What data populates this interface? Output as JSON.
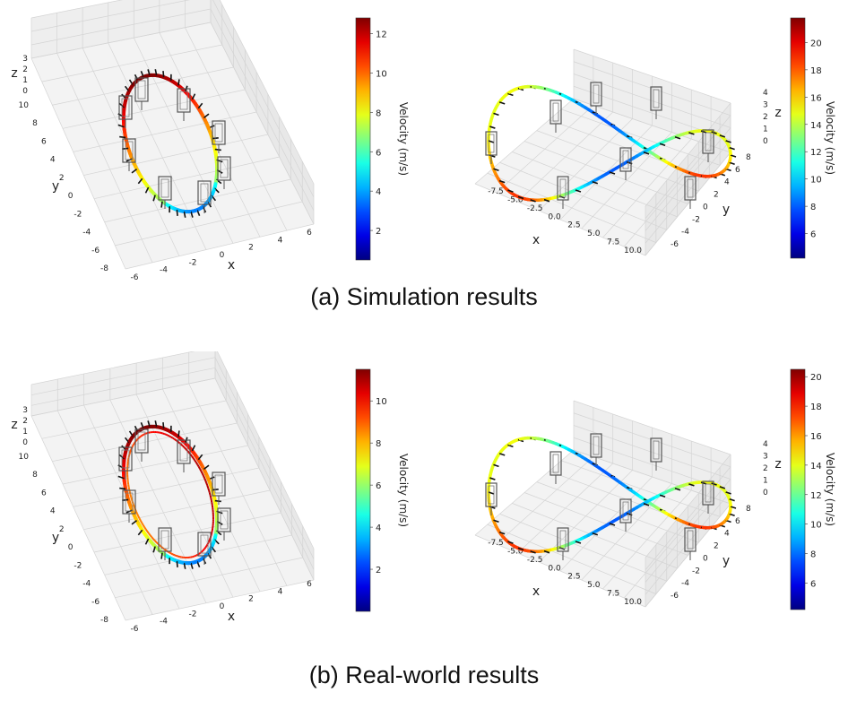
{
  "chart_data": [
    {
      "type": "line",
      "panel": "simulation-figure8-like-circle",
      "subtype": "3d-trajectory",
      "xlabel": "x",
      "ylabel": "y",
      "zlabel": "z",
      "x_ticks": [
        "-6",
        "-4",
        "-2",
        "0",
        "2",
        "4",
        "6"
      ],
      "y_ticks": [
        "-8",
        "-6",
        "-4",
        "-2",
        "0",
        "2",
        "4",
        "6",
        "8",
        "10"
      ],
      "z_ticks": [
        "0",
        "1",
        "2",
        "3"
      ],
      "colorbar": {
        "label": "Velocity (m/s)",
        "ticks": [
          "2",
          "4",
          "6",
          "8",
          "10",
          "12"
        ],
        "min": 0.5,
        "max": 12.8
      },
      "trajectory": {
        "shape": "ellipse",
        "center": [
          0,
          2,
          1.5
        ],
        "rx": 3.2,
        "ry": 5.5
      },
      "gates": [
        [
          -3.5,
          5.5
        ],
        [
          1.5,
          7.5
        ],
        [
          3.8,
          3
        ],
        [
          3.2,
          -1
        ],
        [
          0.5,
          -3.5
        ],
        [
          -3,
          -2
        ],
        [
          -4,
          2
        ],
        [
          -1.8,
          7.5
        ]
      ],
      "grid": true
    },
    {
      "type": "line",
      "panel": "simulation-figure8",
      "subtype": "3d-trajectory",
      "xlabel": "x",
      "ylabel": "y",
      "zlabel": "z",
      "x_ticks": [
        "-7.5",
        "-5.0",
        "-2.5",
        "0.0",
        "2.5",
        "5.0",
        "7.5",
        "10.0"
      ],
      "y_ticks": [
        "-6",
        "-4",
        "-2",
        "0",
        "2",
        "4",
        "6",
        "8"
      ],
      "z_ticks": [
        "0",
        "1",
        "2",
        "3",
        "4"
      ],
      "colorbar": {
        "label": "Velocity (m/s)",
        "ticks": [
          "6",
          "8",
          "10",
          "12",
          "14",
          "16",
          "18",
          "20"
        ],
        "min": 4.2,
        "max": 21.8
      },
      "gates": [
        [
          -8,
          2
        ],
        [
          -3,
          6
        ],
        [
          1,
          5
        ],
        [
          4,
          7
        ],
        [
          7,
          3
        ],
        [
          10,
          1
        ],
        [
          6,
          -3
        ],
        [
          2,
          -6
        ]
      ],
      "grid": true
    },
    {
      "type": "line",
      "panel": "real-world-circle",
      "subtype": "3d-trajectory",
      "xlabel": "x",
      "ylabel": "y",
      "zlabel": "z",
      "x_ticks": [
        "-6",
        "-4",
        "-2",
        "0",
        "2",
        "4",
        "6"
      ],
      "y_ticks": [
        "-8",
        "-6",
        "-4",
        "-2",
        "0",
        "2",
        "4",
        "6",
        "8",
        "10"
      ],
      "z_ticks": [
        "0",
        "1",
        "2",
        "3"
      ],
      "colorbar": {
        "label": "Velocity (m/s)",
        "ticks": [
          "2",
          "4",
          "6",
          "8",
          "10"
        ],
        "min": 0,
        "max": 11.5
      },
      "grid": true
    },
    {
      "type": "line",
      "panel": "real-world-figure8",
      "subtype": "3d-trajectory",
      "xlabel": "x",
      "ylabel": "y",
      "zlabel": "z",
      "x_ticks": [
        "-7.5",
        "-5.0",
        "-2.5",
        "0.0",
        "2.5",
        "5.0",
        "7.5",
        "10.0"
      ],
      "y_ticks": [
        "-6",
        "-4",
        "-2",
        "0",
        "2",
        "4",
        "6",
        "8"
      ],
      "z_ticks": [
        "0",
        "1",
        "2",
        "3",
        "4"
      ],
      "colorbar": {
        "label": "Velocity (m/s)",
        "ticks": [
          "6",
          "8",
          "10",
          "12",
          "14",
          "16",
          "18",
          "20"
        ],
        "min": 4.2,
        "max": 20.5
      },
      "grid": true
    }
  ],
  "captions": {
    "top": "(a) Simulation results",
    "bottom": "(b) Real-world results"
  },
  "colors": {
    "jet_low": "#0000cc",
    "jet_mid": "#e6e600",
    "jet_high": "#990000",
    "gate": "#555555"
  }
}
